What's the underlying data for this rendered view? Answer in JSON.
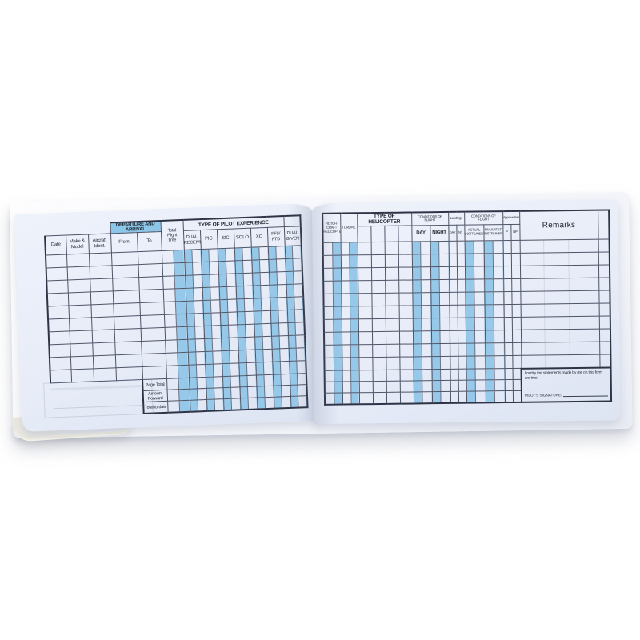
{
  "colors": {
    "page": "#e7ecf8",
    "stripe": "#96c8ea",
    "band_fill": "#8cc6e9",
    "grid_line": "#4d5466",
    "background": "#ffffff"
  },
  "left": {
    "departure_band": "DEPARTURE AND ARRIVAL",
    "experience_band": "TYPE OF PILOT EXPERIENCE",
    "cols": {
      "date": "Date",
      "make_model": "Make &\nModel",
      "aircraft_ident": "Aircraft\nIdent.",
      "from": "From",
      "to": "To",
      "total_flight_time": "Total\nFlight\ntime",
      "dual_received": "DUAL\nRECEIVED",
      "pic": "PIC",
      "sic": "SIC",
      "solo": "SOLO",
      "xc": "XC",
      "ffs_ftd": "FFS/\nFTD",
      "dual_given": "DUAL\nGIVEN"
    },
    "footer": [
      "Page Total",
      "Amount Forward",
      "Total to date"
    ]
  },
  "right": {
    "cols": {
      "rotorcraft": "ROTOR-\nCRAFT\nHELICOPTER",
      "turbine": "TURBINE",
      "type_of_helicopter": "TYPE OF HELICOPTER",
      "conditions_of_flight_1": "CONDITIONS OF\nFLIGHT",
      "landings": "Landings",
      "conditions_of_flight_2": "CONDITIONS OF\nFLIGHT",
      "approaches": "Approaches",
      "remarks": "Remarks",
      "day": "DAY",
      "night": "NIGHT",
      "ldg_day": "DAY",
      "ldg_nt": "NT",
      "actual_instrument": "ACTUAL\nINSTRUMENT",
      "simulated_instrument": "SIMULATED\nINSTRUMENT",
      "precision": "P",
      "non_precision": "NP"
    }
  },
  "cert": {
    "statement": "I certify the statements made by me on this form are true.",
    "signature_label": "PILOT'S SIGNATURE:"
  }
}
